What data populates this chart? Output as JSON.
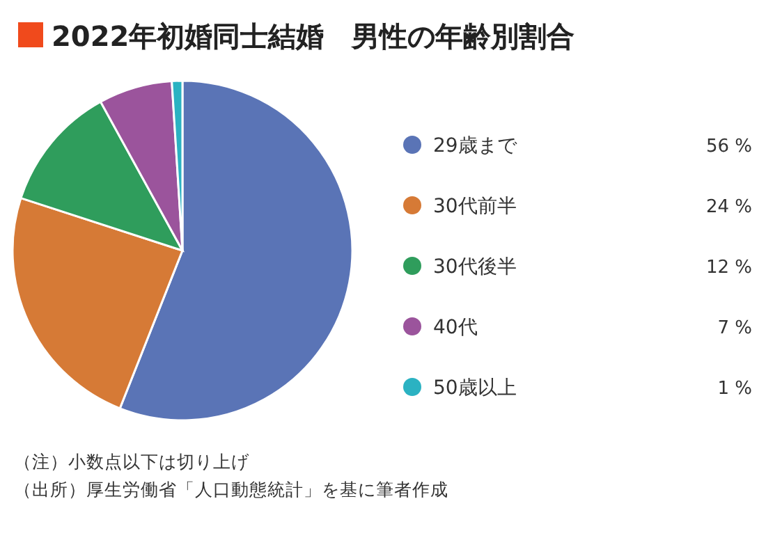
{
  "chart_data": {
    "type": "pie",
    "title": "2022年初婚同士結婚　男性の年齢別割合",
    "categories": [
      "29歳まで",
      "30代前半",
      "30代後半",
      "40代",
      "50歳以上"
    ],
    "values": [
      56,
      24,
      12,
      7,
      1
    ],
    "colors": [
      "#5a74b6",
      "#d67a36",
      "#2f9d5c",
      "#9b549c",
      "#2bb2c2"
    ],
    "value_labels": [
      "56 %",
      "24 %",
      "12 %",
      "7 %",
      "1 %"
    ],
    "legend": "right",
    "annotations": [
      "（注）小数点以下は切り上げ",
      "（出所）厚生労働省「人口動態統計」を基に筆者作成"
    ]
  }
}
